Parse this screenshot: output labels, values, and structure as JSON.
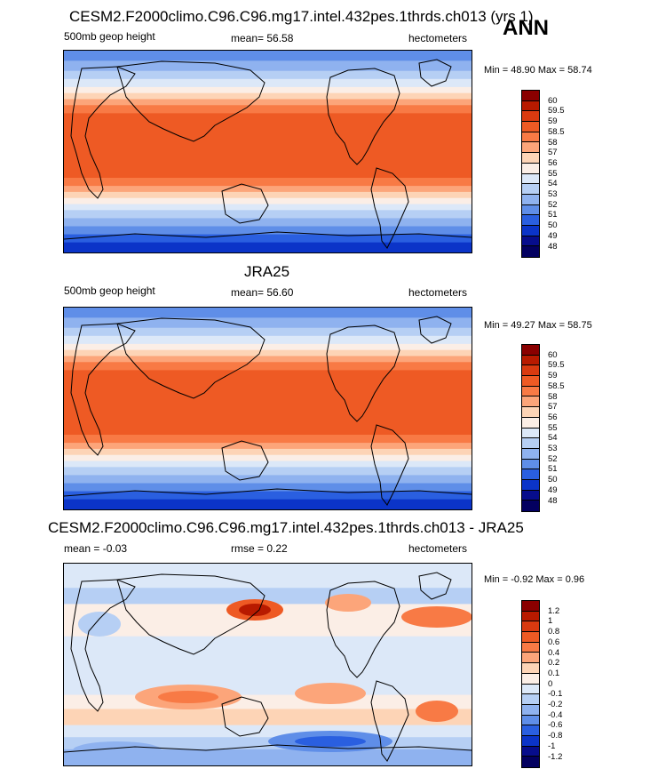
{
  "header": {
    "season": "ANN"
  },
  "panels": [
    {
      "title": "CESM2.F2000climo.C96.C96.mg17.intel.432pes.1thrds.ch013 (yrs 1)",
      "left_label": "500mb geop height",
      "center_label": "mean=  56.58",
      "right_label": "hectometers",
      "minmax": "Min =  48.90 Max =  58.74",
      "colorbar": {
        "labels": [
          "60",
          "59.5",
          "59",
          "58.5",
          "58",
          "57",
          "56",
          "55",
          "54",
          "53",
          "52",
          "51",
          "50",
          "49",
          "48"
        ],
        "colors": [
          "#8a0000",
          "#b81a00",
          "#d93a10",
          "#ee5a24",
          "#f87a45",
          "#fca57a",
          "#fdd4b6",
          "#fbeee6",
          "#dce8f8",
          "#b6cff4",
          "#8fb2ef",
          "#5f8ee8",
          "#2a5fe0",
          "#0b34c8",
          "#070d8c",
          "#030060"
        ]
      }
    },
    {
      "title": "JRA25",
      "left_label": "500mb geop height",
      "center_label": "mean=  56.60",
      "right_label": "hectometers",
      "minmax": "Min =  49.27 Max =  58.75",
      "colorbar": {
        "labels": [
          "60",
          "59.5",
          "59",
          "58.5",
          "58",
          "57",
          "56",
          "55",
          "54",
          "53",
          "52",
          "51",
          "50",
          "49",
          "48"
        ],
        "colors": [
          "#8a0000",
          "#b81a00",
          "#d93a10",
          "#ee5a24",
          "#f87a45",
          "#fca57a",
          "#fdd4b6",
          "#fbeee6",
          "#dce8f8",
          "#b6cff4",
          "#8fb2ef",
          "#5f8ee8",
          "#2a5fe0",
          "#0b34c8",
          "#070d8c",
          "#030060"
        ]
      }
    },
    {
      "title": "CESM2.F2000climo.C96.C96.mg17.intel.432pes.1thrds.ch013 - JRA25",
      "left_label": "mean =  -0.03",
      "center_label": "rmse =   0.22",
      "right_label": "hectometers",
      "minmax": "Min =  -0.92 Max =   0.96",
      "colorbar": {
        "labels": [
          "1.2",
          "1",
          "0.8",
          "0.6",
          "0.4",
          "0.2",
          "0.1",
          "0",
          "-0.1",
          "-0.2",
          "-0.4",
          "-0.6",
          "-0.8",
          "-1",
          "-1.2"
        ],
        "colors": [
          "#8a0000",
          "#b81a00",
          "#d93a10",
          "#ee5a24",
          "#f87a45",
          "#fca57a",
          "#fdd4b6",
          "#fbeee6",
          "#dce8f8",
          "#b6cff4",
          "#8fb2ef",
          "#5f8ee8",
          "#2a5fe0",
          "#0b34c8",
          "#070d8c",
          "#030060"
        ]
      }
    }
  ],
  "legend_colors": {
    "land_outline": "#000000"
  }
}
